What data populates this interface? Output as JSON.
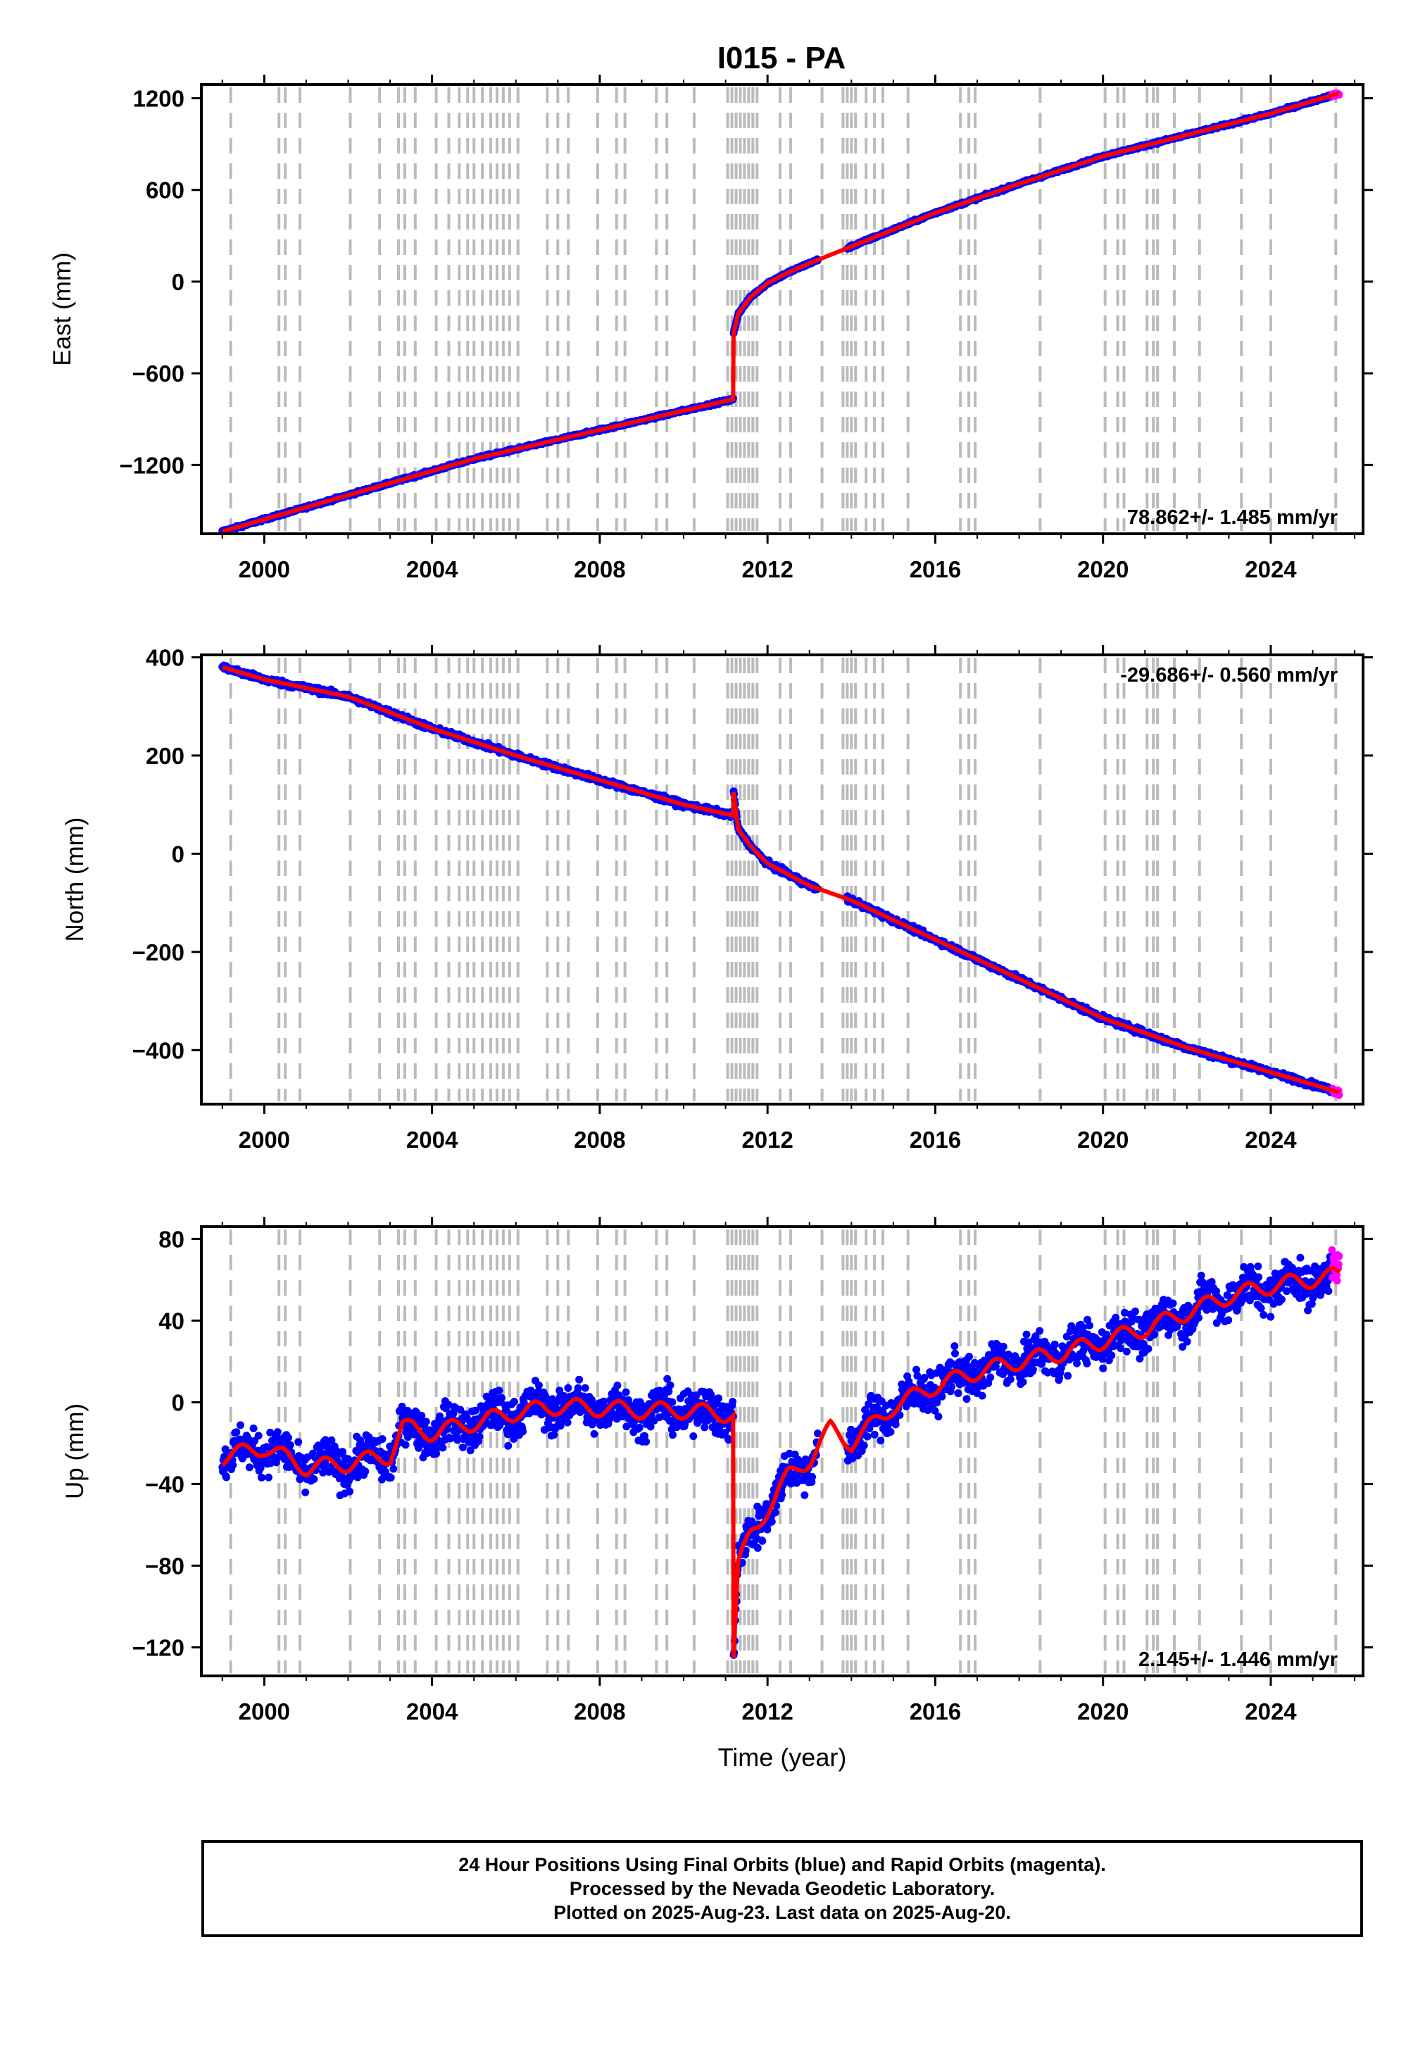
{
  "title": "I015 - PA",
  "colors": {
    "final_orbits": "#0000ff",
    "rapid_orbits": "#ff00ff",
    "model": "#ff0000",
    "break_lines": "#bbbbbb",
    "frame": "#000000"
  },
  "chart_data": [
    {
      "type": "scatter",
      "name": "east",
      "ylabel": "East (mm)",
      "xlabel": "",
      "xlim": [
        1998.5,
        2026.2
      ],
      "ylim": [
        -1650,
        1290
      ],
      "yticks": [
        -1200,
        -600,
        0,
        600,
        1200
      ],
      "ytick_labels": [
        "−1200",
        "−600",
        "0",
        "600",
        "1200"
      ],
      "xticks": [
        2000,
        2004,
        2008,
        2012,
        2016,
        2020,
        2024
      ],
      "rate_label": "78.862+/- 1.485 mm/yr",
      "rate_position": "bottom-right",
      "grid": false,
      "model_knots": [
        [
          1999.0,
          -1635
        ],
        [
          2005.0,
          -1160
        ],
        [
          2011.18,
          -770
        ],
        [
          2011.19,
          -340
        ],
        [
          2011.3,
          -210
        ],
        [
          2011.6,
          -100
        ],
        [
          2012.0,
          -10
        ],
        [
          2012.5,
          60
        ],
        [
          2013.0,
          120
        ],
        [
          2014.0,
          230
        ],
        [
          2016.0,
          450
        ],
        [
          2018.0,
          640
        ],
        [
          2020.0,
          820
        ],
        [
          2022.0,
          960
        ],
        [
          2024.0,
          1100
        ],
        [
          2025.6,
          1230
        ]
      ],
      "scatter_noise_mm": 6,
      "gaps": [
        [
          2013.2,
          2013.9
        ]
      ],
      "rapid_range": [
        2025.45,
        2025.63
      ]
    },
    {
      "type": "scatter",
      "name": "north",
      "ylabel": "North (mm)",
      "xlabel": "",
      "xlim": [
        1998.5,
        2026.2
      ],
      "ylim": [
        -510,
        405
      ],
      "yticks": [
        -400,
        -200,
        0,
        200,
        400
      ],
      "ytick_labels": [
        "−400",
        "−200",
        "0",
        "200",
        "400"
      ],
      "xticks": [
        2000,
        2004,
        2008,
        2012,
        2016,
        2020,
        2024
      ],
      "rate_label": "-29.686+/- 0.560 mm/yr",
      "rate_position": "top-right",
      "grid": false,
      "model_knots": [
        [
          1999.0,
          380
        ],
        [
          2000.0,
          355
        ],
        [
          2002.0,
          320
        ],
        [
          2004.0,
          255
        ],
        [
          2006.0,
          200
        ],
        [
          2008.0,
          150
        ],
        [
          2010.0,
          100
        ],
        [
          2011.18,
          78
        ],
        [
          2011.19,
          125
        ],
        [
          2011.3,
          50
        ],
        [
          2011.6,
          15
        ],
        [
          2012.0,
          -20
        ],
        [
          2013.0,
          -65
        ],
        [
          2014.0,
          -95
        ],
        [
          2016.0,
          -175
        ],
        [
          2018.0,
          -255
        ],
        [
          2020.0,
          -335
        ],
        [
          2022.0,
          -395
        ],
        [
          2024.0,
          -445
        ],
        [
          2025.6,
          -485
        ]
      ],
      "scatter_noise_mm": 4,
      "gaps": [
        [
          2013.2,
          2013.9
        ]
      ],
      "rapid_range": [
        2025.45,
        2025.63
      ]
    },
    {
      "type": "scatter",
      "name": "up",
      "ylabel": "Up (mm)",
      "xlabel": "Time (year)",
      "xlim": [
        1998.5,
        2026.2
      ],
      "ylim": [
        -134,
        86
      ],
      "yticks": [
        -120,
        -80,
        -40,
        0,
        40,
        80
      ],
      "ytick_labels": [
        "−120",
        "−80",
        "−40",
        "0",
        "40",
        "80"
      ],
      "xticks": [
        2000,
        2004,
        2008,
        2012,
        2016,
        2020,
        2024
      ],
      "rate_label": "2.145+/- 1.446 mm/yr",
      "rate_position": "bottom-right",
      "grid": false,
      "model_knots": [
        [
          1999.0,
          -27
        ],
        [
          2000.0,
          -22
        ],
        [
          2001.0,
          -32
        ],
        [
          2002.0,
          -30
        ],
        [
          2003.0,
          -26
        ],
        [
          2003.3,
          -12
        ],
        [
          2004.0,
          -15
        ],
        [
          2005.0,
          -10
        ],
        [
          2006.0,
          -5
        ],
        [
          2007.0,
          -2
        ],
        [
          2008.0,
          -3
        ],
        [
          2009.0,
          -4
        ],
        [
          2010.0,
          -4
        ],
        [
          2011.18,
          -6
        ],
        [
          2011.19,
          -125
        ],
        [
          2011.3,
          -80
        ],
        [
          2011.6,
          -65
        ],
        [
          2012.0,
          -52
        ],
        [
          2012.5,
          -36
        ],
        [
          2013.0,
          -28
        ],
        [
          2013.5,
          -13
        ],
        [
          2014.0,
          -20
        ],
        [
          2015.0,
          -2
        ],
        [
          2016.0,
          8
        ],
        [
          2017.0,
          15
        ],
        [
          2018.0,
          20
        ],
        [
          2019.0,
          24
        ],
        [
          2020.0,
          30
        ],
        [
          2021.0,
          36
        ],
        [
          2022.0,
          44
        ],
        [
          2023.0,
          52
        ],
        [
          2024.0,
          57
        ],
        [
          2025.6,
          62
        ]
      ],
      "seasonal_amplitude_mm": 4,
      "scatter_noise_mm": 7,
      "gaps": [
        [
          2013.2,
          2013.9
        ]
      ],
      "rapid_range": [
        2025.45,
        2025.63
      ]
    }
  ],
  "break_lines_years": [
    1999.2,
    2000.35,
    2000.5,
    2000.85,
    2002.05,
    2002.75,
    2003.2,
    2003.35,
    2003.6,
    2004.1,
    2004.4,
    2004.65,
    2004.85,
    2005.0,
    2005.2,
    2005.4,
    2005.55,
    2005.7,
    2005.85,
    2006.05,
    2006.75,
    2007.0,
    2007.25,
    2007.95,
    2008.4,
    2008.6,
    2009.35,
    2009.6,
    2010.25,
    2011.05,
    2011.15,
    2011.25,
    2011.35,
    2011.45,
    2011.55,
    2011.65,
    2011.75,
    2012.3,
    2012.55,
    2013.3,
    2013.8,
    2013.9,
    2014.0,
    2014.1,
    2014.35,
    2014.55,
    2014.75,
    2015.35,
    2016.6,
    2016.8,
    2016.95,
    2018.5,
    2020.05,
    2020.35,
    2020.5,
    2021.05,
    2021.2,
    2021.3,
    2021.7,
    2022.3,
    2023.3,
    2024.0,
    2025.55
  ],
  "footer": {
    "line1": "24 Hour Positions Using Final Orbits (blue) and Rapid Orbits (magenta).",
    "line2": "Processed by the Nevada Geodetic Laboratory.",
    "line3": "Plotted on 2025-Aug-23. Last data on 2025-Aug-20."
  }
}
